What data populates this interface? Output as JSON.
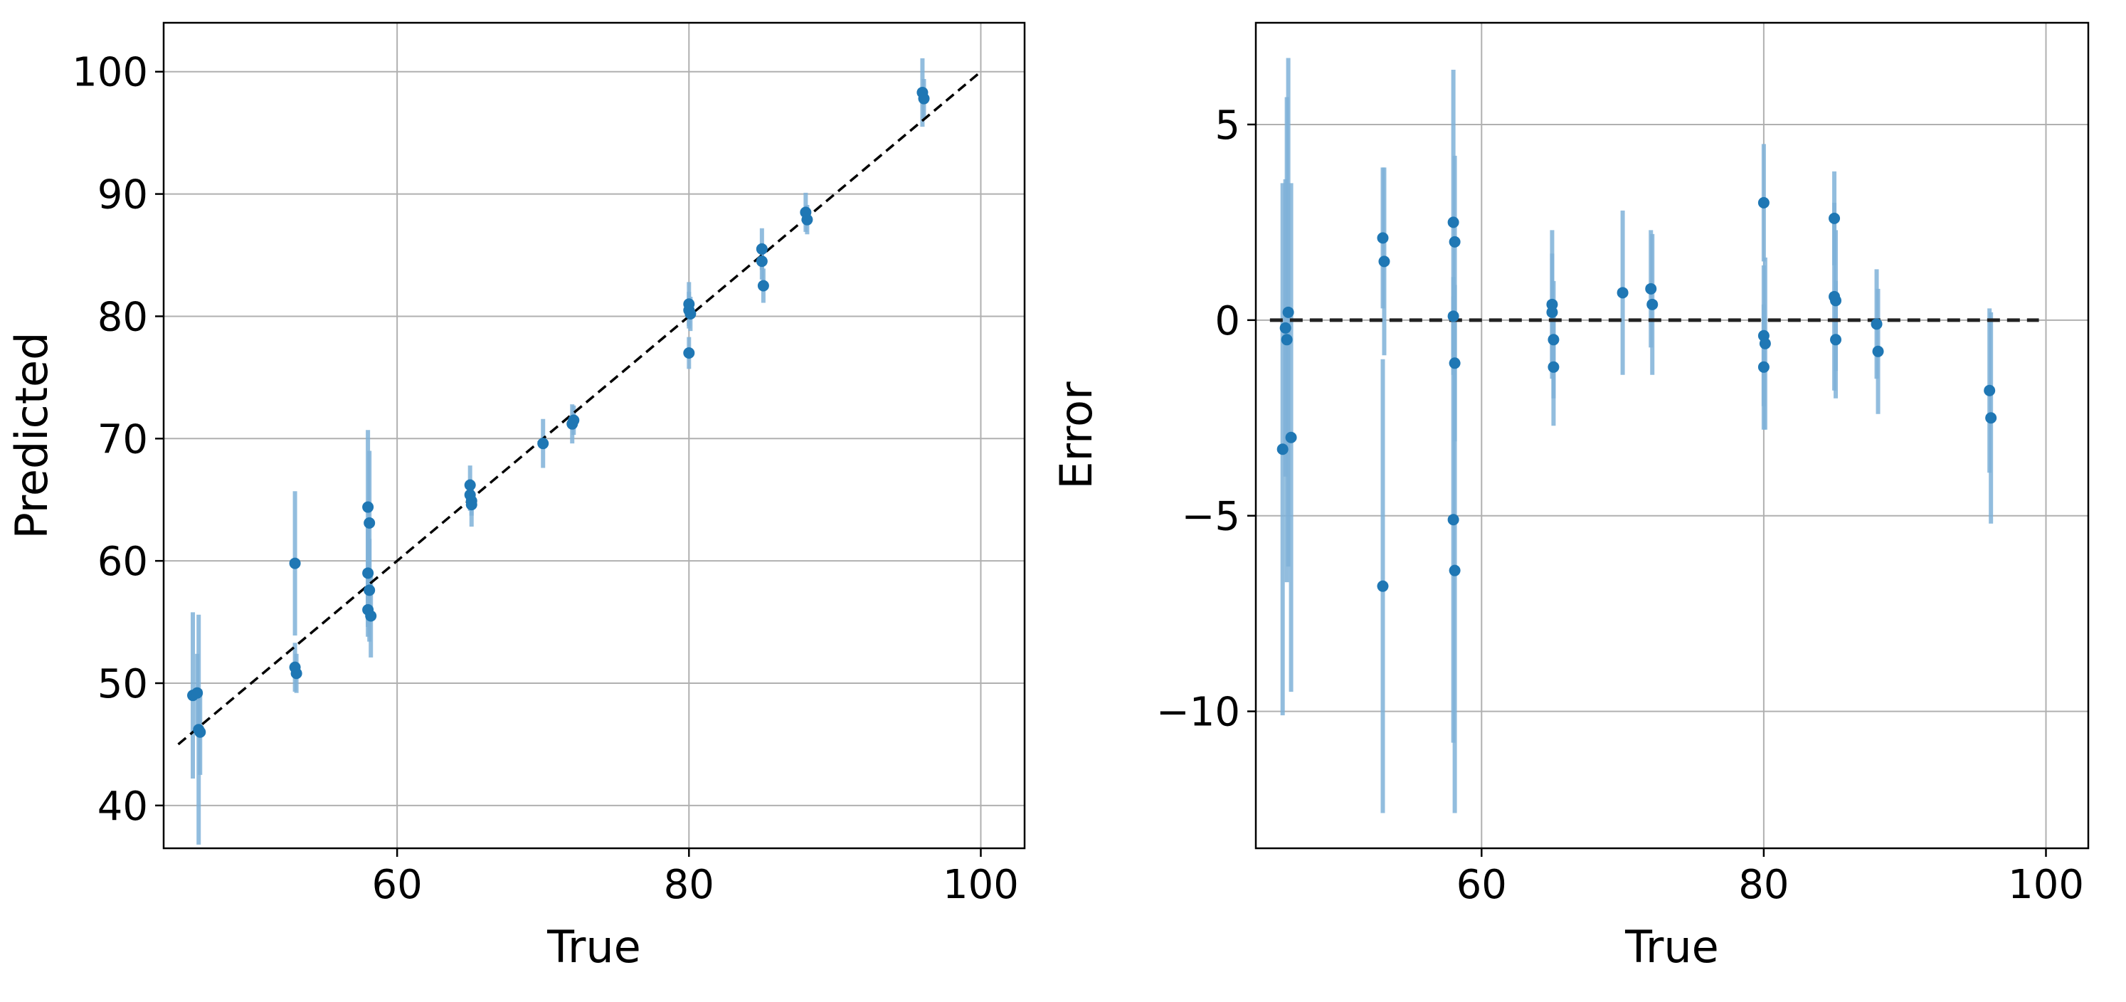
{
  "chart_data": [
    {
      "type": "scatter",
      "title": "",
      "xlabel": "True",
      "ylabel": "Predicted",
      "xlim": [
        44,
        103
      ],
      "ylim": [
        36.5,
        104
      ],
      "xticks": [
        60,
        80,
        100
      ],
      "yticks": [
        40,
        50,
        60,
        70,
        80,
        90,
        100
      ],
      "xtick_labels": [
        "60",
        "80",
        "100"
      ],
      "ytick_labels": [
        "40",
        "50",
        "60",
        "70",
        "80",
        "90",
        "100"
      ],
      "grid": true,
      "reference_line": {
        "x": [
          45,
          100
        ],
        "y": [
          45,
          100
        ],
        "style": "dashed"
      },
      "points": [
        {
          "x": 46,
          "y": 49,
          "err": 6.8
        },
        {
          "x": 46.3,
          "y": 49.2,
          "err": 3.2
        },
        {
          "x": 46.4,
          "y": 46.2,
          "err": 9.4
        },
        {
          "x": 46.5,
          "y": 46,
          "err": 3.5
        },
        {
          "x": 53,
          "y": 59.8,
          "err": 5.9
        },
        {
          "x": 53,
          "y": 51.3,
          "err": 2
        },
        {
          "x": 53.1,
          "y": 50.8,
          "err": 1.6
        },
        {
          "x": 58,
          "y": 64.4,
          "err": 6.3
        },
        {
          "x": 58.1,
          "y": 63.1,
          "err": 5.9
        },
        {
          "x": 58,
          "y": 59,
          "err": 4.4
        },
        {
          "x": 58.1,
          "y": 57.6,
          "err": 4.2
        },
        {
          "x": 58,
          "y": 56,
          "err": 2.2
        },
        {
          "x": 58.2,
          "y": 55.5,
          "err": 3.4
        },
        {
          "x": 65,
          "y": 66.2,
          "err": 1.6
        },
        {
          "x": 65,
          "y": 65.4,
          "err": 1.3
        },
        {
          "x": 65.1,
          "y": 64.9,
          "err": 1.2
        },
        {
          "x": 65.1,
          "y": 64.6,
          "err": 1.8
        },
        {
          "x": 70,
          "y": 69.6,
          "err": 2
        },
        {
          "x": 72,
          "y": 71.2,
          "err": 1.6
        },
        {
          "x": 72.1,
          "y": 71.5,
          "err": 1.2
        },
        {
          "x": 80,
          "y": 81,
          "err": 1.8
        },
        {
          "x": 80,
          "y": 80.5,
          "err": 1.5
        },
        {
          "x": 80.1,
          "y": 80.2,
          "err": 1.4
        },
        {
          "x": 80,
          "y": 77,
          "err": 1.3
        },
        {
          "x": 85,
          "y": 85.5,
          "err": 1.7
        },
        {
          "x": 85,
          "y": 84.5,
          "err": 1.5
        },
        {
          "x": 85.1,
          "y": 82.5,
          "err": 1.4
        },
        {
          "x": 88,
          "y": 88.5,
          "err": 1.6
        },
        {
          "x": 88.1,
          "y": 87.9,
          "err": 1.2
        },
        {
          "x": 96,
          "y": 98.3,
          "err": 2.8
        },
        {
          "x": 96.1,
          "y": 97.8,
          "err": 1.6
        }
      ]
    },
    {
      "type": "scatter",
      "title": "",
      "xlabel": "True",
      "ylabel": "Error",
      "xlim": [
        44,
        103
      ],
      "ylim": [
        -13.5,
        7.6
      ],
      "xticks": [
        60,
        80,
        100
      ],
      "yticks": [
        -10,
        -5,
        0,
        5
      ],
      "xtick_labels": [
        "60",
        "80",
        "100"
      ],
      "ytick_labels": [
        "−10",
        "−5",
        "0",
        "5"
      ],
      "grid": true,
      "reference_line": {
        "x": [
          45,
          99.5
        ],
        "y": [
          0,
          0
        ],
        "style": "dashed"
      },
      "points": [
        {
          "x": 45.9,
          "y": -3.3,
          "err": 6.8
        },
        {
          "x": 46.1,
          "y": -0.2,
          "err": 3.8
        },
        {
          "x": 46.3,
          "y": 0.2,
          "err": 6.5
        },
        {
          "x": 46.5,
          "y": -3,
          "err": 6.5
        },
        {
          "x": 46.2,
          "y": -0.5,
          "err": 6.2
        },
        {
          "x": 53,
          "y": 2.1,
          "err": 1.8
        },
        {
          "x": 53.1,
          "y": 1.5,
          "err": 2.4
        },
        {
          "x": 53,
          "y": -6.8,
          "err": 5.8
        },
        {
          "x": 58,
          "y": 2.5,
          "err": 3.9
        },
        {
          "x": 58.1,
          "y": 2,
          "err": 2.2
        },
        {
          "x": 58,
          "y": 0.1,
          "err": 1
        },
        {
          "x": 58.1,
          "y": -1.1,
          "err": 2
        },
        {
          "x": 58,
          "y": -5.1,
          "err": 5.7
        },
        {
          "x": 58.1,
          "y": -6.4,
          "err": 6.2
        },
        {
          "x": 65,
          "y": 0.4,
          "err": 1.9
        },
        {
          "x": 65,
          "y": 0.2,
          "err": 1.5
        },
        {
          "x": 65.1,
          "y": -0.5,
          "err": 1.5
        },
        {
          "x": 65.1,
          "y": -1.2,
          "err": 1.5
        },
        {
          "x": 70,
          "y": 0.7,
          "err": 2.1
        },
        {
          "x": 72,
          "y": 0.8,
          "err": 1.5
        },
        {
          "x": 72.1,
          "y": 0.4,
          "err": 1.8
        },
        {
          "x": 80,
          "y": 3,
          "err": 1.5
        },
        {
          "x": 80,
          "y": -0.4,
          "err": 1.8
        },
        {
          "x": 80.1,
          "y": -0.6,
          "err": 2.2
        },
        {
          "x": 80,
          "y": -1.2,
          "err": 1.6
        },
        {
          "x": 85,
          "y": 2.6,
          "err": 1.2
        },
        {
          "x": 85,
          "y": 0.6,
          "err": 2.4
        },
        {
          "x": 85.1,
          "y": 0.5,
          "err": 1.8
        },
        {
          "x": 85.1,
          "y": -0.5,
          "err": 1.5
        },
        {
          "x": 88,
          "y": -0.1,
          "err": 1.4
        },
        {
          "x": 88.1,
          "y": -0.8,
          "err": 1.6
        },
        {
          "x": 96,
          "y": -1.8,
          "err": 2.1
        },
        {
          "x": 96.1,
          "y": -2.5,
          "err": 2.7
        }
      ]
    }
  ]
}
